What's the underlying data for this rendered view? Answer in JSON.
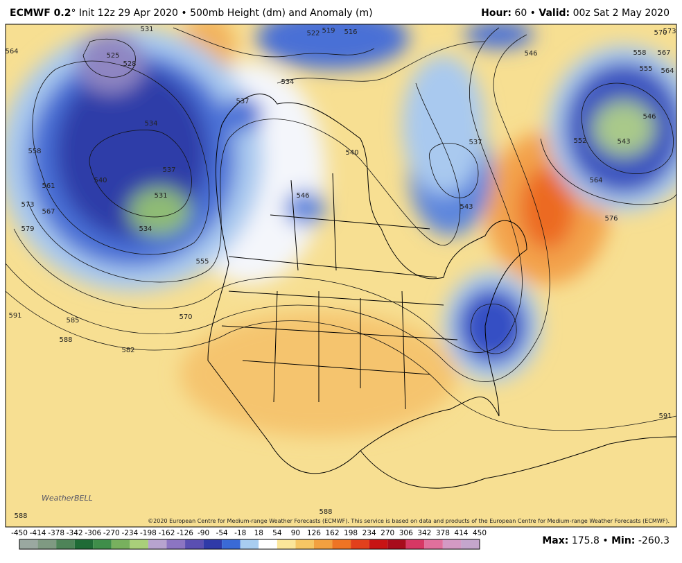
{
  "header": {
    "model": "ECMWF 0.2",
    "rest": "° Init 12z 29 Apr 2020 • 500mb Height (dm) and Anomaly (m)",
    "right": [
      "Hour:",
      " 60 • ",
      "Valid:",
      " 00z Sat 2 May 2020"
    ]
  },
  "copyright": "©2020 European Centre for Medium-range Weather Forecasts (ECMWF). This service is based on data and products of the European Centre for Medium-range Weather Forecasts (ECMWF).",
  "logo": "WeatherBELL",
  "contour_labels": [
    "531",
    "525",
    "528",
    "522",
    "519",
    "516",
    "534",
    "537",
    "546",
    "558",
    "555",
    "564",
    "567",
    "570",
    "573",
    "564",
    "534",
    "537",
    "558",
    "540",
    "561",
    "567",
    "573",
    "579",
    "531",
    "534",
    "555",
    "570",
    "591",
    "585",
    "588",
    "582",
    "546",
    "543",
    "552",
    "564",
    "576",
    "537",
    "540",
    "543",
    "546",
    "591",
    "588",
    "588"
  ],
  "colorbar": {
    "ticks": [
      -450,
      -414,
      -378,
      -342,
      -306,
      -270,
      -234,
      -198,
      -162,
      -126,
      -90,
      -54,
      -18,
      18,
      54,
      90,
      126,
      162,
      198,
      234,
      270,
      306,
      342,
      378,
      414,
      450
    ],
    "colors": [
      "#9aa8a0",
      "#7f9a82",
      "#4e8458",
      "#1f6b36",
      "#3f8e4a",
      "#78b05e",
      "#a9cf7a",
      "#b7a3cf",
      "#8c75c2",
      "#5a4fb2",
      "#2f3aa8",
      "#3a6ad6",
      "#a8cdf0",
      "#ffffff",
      "#fbe69a",
      "#f6c664",
      "#f2a040",
      "#ee7424",
      "#e2401c",
      "#c81414",
      "#a80c1c",
      "#d63864",
      "#e0709c",
      "#d49ac4",
      "#c4a6cc"
    ]
  },
  "stats": {
    "max_label": "Max:",
    "max": 175.8,
    "separator": "•",
    "min_label": "Min:",
    "min": -260.3
  }
}
